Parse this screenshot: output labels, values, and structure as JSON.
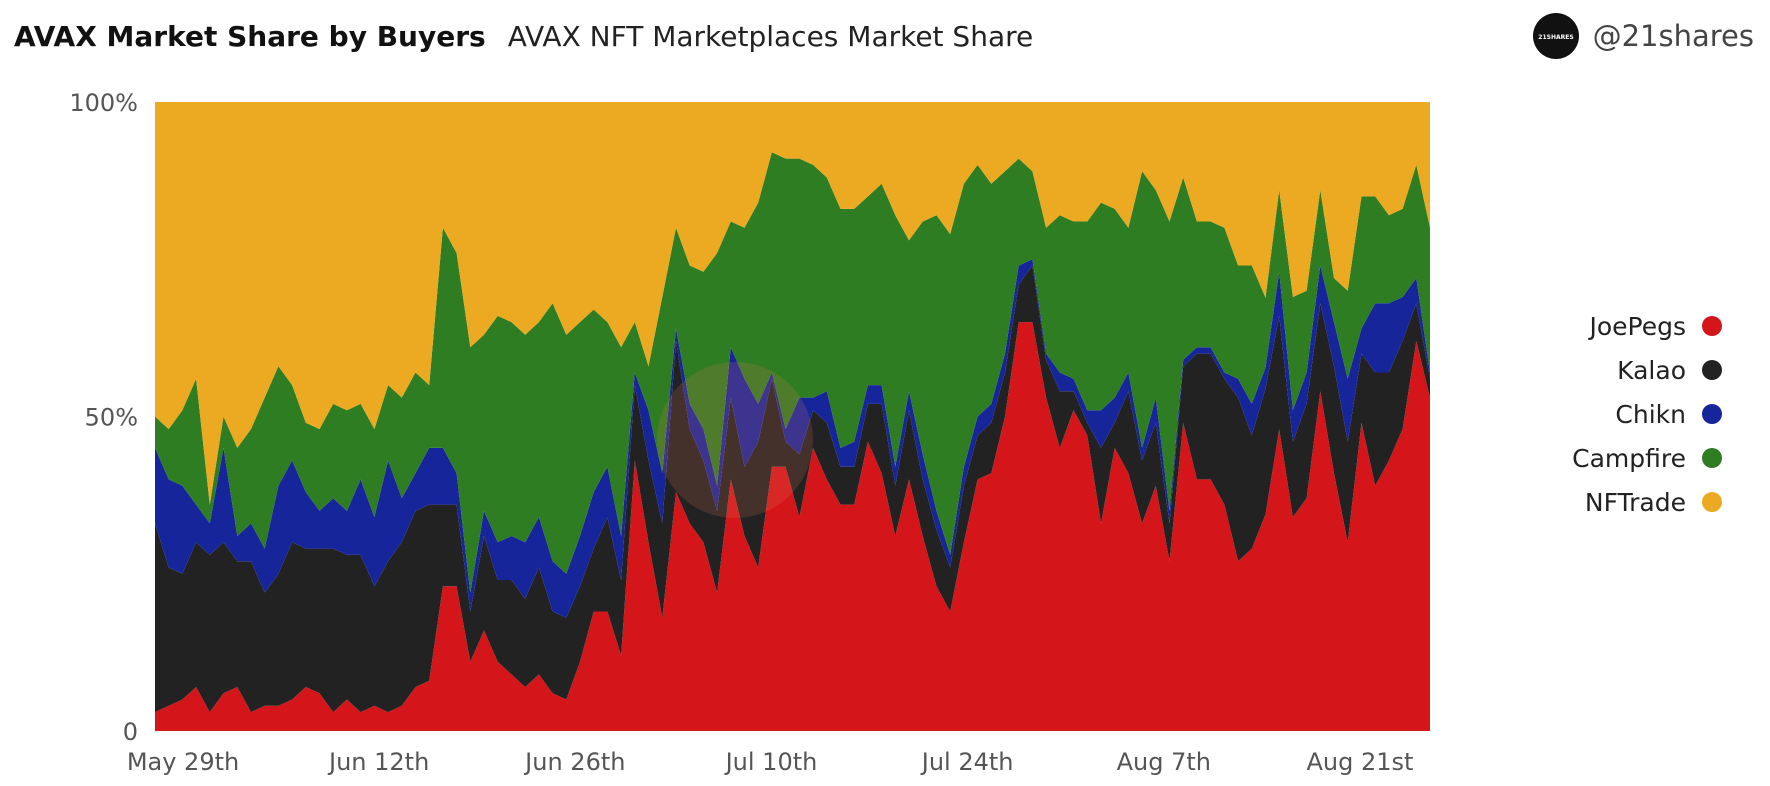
{
  "header": {
    "title": "AVAX Market Share by Buyers",
    "subtitle": "AVAX NFT Marketplaces Market Share",
    "handle": "@21shares",
    "logo_text": "21SHARES"
  },
  "colors": {
    "JoePegs": "#d4161b",
    "Kalao": "#222222",
    "Chikn": "#16259a",
    "Campfire": "#2e7d22",
    "NFTrade": "#ebaa22"
  },
  "chart_data": {
    "type": "area",
    "stacked": true,
    "normalized": true,
    "title": "AVAX NFT Marketplaces Market Share",
    "ylim": [
      0,
      100
    ],
    "y_ticks": [
      {
        "value": 0,
        "label": "0"
      },
      {
        "value": 50,
        "label": "50%"
      },
      {
        "value": 100,
        "label": "100%"
      }
    ],
    "x_start": "2022-05-27",
    "x_end": "2022-08-26",
    "x_ticks": [
      {
        "date": "2022-05-29",
        "label": "May 29th"
      },
      {
        "date": "2022-06-12",
        "label": "Jun 12th"
      },
      {
        "date": "2022-06-26",
        "label": "Jun 26th"
      },
      {
        "date": "2022-07-10",
        "label": "Jul 10th"
      },
      {
        "date": "2022-07-24",
        "label": "Jul 24th"
      },
      {
        "date": "2022-08-07",
        "label": "Aug 7th"
      },
      {
        "date": "2022-08-21",
        "label": "Aug 21st"
      }
    ],
    "legend_position": "right",
    "grid": false,
    "series": [
      {
        "name": "JoePegs",
        "values": [
          3,
          4,
          5,
          7,
          3,
          6,
          7,
          3,
          4,
          4,
          5,
          7,
          6,
          3,
          5,
          3,
          4,
          3,
          4,
          7,
          8,
          23,
          23,
          11,
          16,
          11,
          9,
          7,
          9,
          6,
          5,
          11,
          19,
          19,
          12,
          43,
          30,
          18,
          38,
          33,
          30,
          22,
          40,
          31,
          26,
          42,
          42,
          34,
          45,
          40,
          36,
          36,
          46,
          41,
          31,
          40,
          31,
          23,
          19,
          30,
          40,
          41,
          50,
          65,
          65,
          53,
          45,
          51,
          47,
          33,
          45,
          41,
          33,
          39,
          27,
          49,
          40,
          40,
          36,
          27,
          29,
          31,
          48,
          34,
          37,
          54,
          41,
          30,
          49,
          39,
          43,
          48,
          62,
          53
        ]
      },
      {
        "name": "Kalao",
        "values": [
          30,
          22,
          20,
          23,
          25,
          24,
          20,
          24,
          18,
          21,
          25,
          22,
          23,
          26,
          23,
          25,
          19,
          24,
          26,
          28,
          28,
          13,
          13,
          8,
          15,
          13,
          15,
          14,
          17,
          13,
          13,
          12,
          10,
          15,
          12,
          12,
          13,
          15,
          24,
          15,
          13,
          13,
          13,
          11,
          20,
          14,
          4,
          10,
          6,
          9,
          6,
          6,
          6,
          11,
          8,
          11,
          9,
          9,
          7,
          9,
          7,
          8,
          7,
          6,
          9,
          6,
          9,
          3,
          2,
          12,
          4,
          13,
          10,
          10,
          6,
          9,
          20,
          20,
          20,
          26,
          18,
          18,
          18,
          12,
          15,
          14,
          17,
          16,
          11,
          18,
          14,
          14,
          6,
          3
        ]
      },
      {
        "name": "Chikn",
        "values": [
          12,
          14,
          14,
          6,
          5,
          15,
          4,
          6,
          7,
          14,
          13,
          9,
          6,
          8,
          7,
          12,
          11,
          16,
          7,
          6,
          9,
          9,
          5,
          3,
          4,
          6,
          7,
          9,
          8,
          8,
          7,
          8,
          9,
          8,
          7,
          2,
          8,
          8,
          2,
          4,
          5,
          4,
          8,
          14,
          6,
          1,
          2,
          9,
          2,
          5,
          3,
          4,
          3,
          3,
          3,
          3,
          4,
          3,
          2,
          3,
          3,
          3,
          3,
          3,
          1,
          1,
          3,
          2,
          2,
          6,
          4,
          3,
          2,
          4,
          2,
          1,
          1,
          1,
          1,
          3,
          5,
          3,
          7,
          5,
          5,
          6,
          7,
          10,
          4,
          11,
          11,
          7,
          4,
          1
        ]
      },
      {
        "name": "Campfire",
        "values": [
          5,
          8,
          12,
          20,
          3,
          5,
          14,
          15,
          24,
          19,
          12,
          11,
          13,
          15,
          16,
          12,
          14,
          12,
          16,
          16,
          10,
          35,
          35,
          39,
          28,
          36,
          34,
          33,
          31,
          41,
          38,
          34,
          29,
          23,
          30,
          8,
          7,
          28,
          16,
          22,
          25,
          37,
          20,
          24,
          32,
          35,
          43,
          38,
          37,
          34,
          38,
          37,
          30,
          32,
          40,
          24,
          37,
          47,
          51,
          45,
          40,
          35,
          29,
          17,
          14,
          20,
          25,
          25,
          30,
          33,
          30,
          23,
          44,
          33,
          46,
          29,
          20,
          20,
          23,
          18,
          22,
          10,
          13,
          18,
          13,
          12,
          7,
          14,
          21,
          17,
          14,
          14,
          18,
          23
        ]
      },
      {
        "name": "NFTrade",
        "values": [
          50,
          52,
          49,
          44,
          64,
          50,
          55,
          52,
          47,
          42,
          45,
          51,
          52,
          48,
          49,
          48,
          52,
          45,
          47,
          43,
          45,
          20,
          24,
          39,
          37,
          34,
          35,
          37,
          35,
          32,
          37,
          35,
          33,
          35,
          39,
          35,
          42,
          31,
          20,
          26,
          27,
          24,
          19,
          20,
          16,
          8,
          9,
          9,
          10,
          12,
          17,
          17,
          15,
          13,
          18,
          22,
          19,
          18,
          21,
          13,
          10,
          13,
          11,
          9,
          11,
          20,
          18,
          19,
          19,
          16,
          17,
          20,
          11,
          14,
          19,
          12,
          19,
          19,
          20,
          26,
          26,
          28,
          14,
          31,
          30,
          14,
          28,
          30,
          15,
          15,
          18,
          17,
          10,
          20
        ]
      }
    ]
  }
}
